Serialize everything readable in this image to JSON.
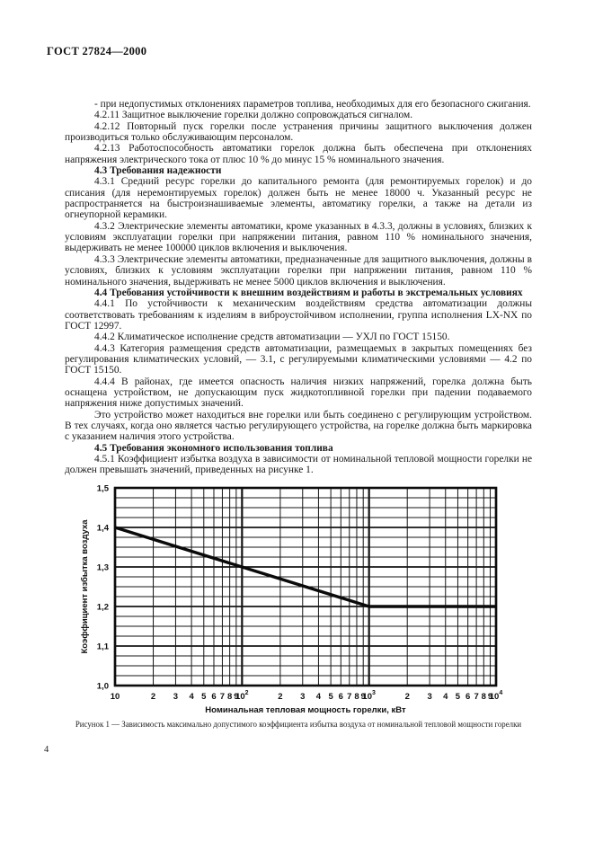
{
  "header": {
    "standard": "ГОСТ 27824—2000"
  },
  "paragraphs": [
    {
      "bold": false,
      "text": "- при недопустимых отклонениях параметров топлива, необходимых для его безопасного сжигания."
    },
    {
      "bold": false,
      "text": "4.2.11 Защитное выключение горелки должно сопровождаться сигналом."
    },
    {
      "bold": false,
      "text": "4.2.12 Повторный пуск горелки после устранения причины защитного выключения должен производиться только обслуживающим персоналом."
    },
    {
      "bold": false,
      "text": "4.2.13 Работоспособность автоматики горелок должна быть обеспечена при отклонениях напряжения электрического тока от плюс 10 % до минус 15 % номинального значения."
    },
    {
      "bold": true,
      "text": "4.3 Требования надежности"
    },
    {
      "bold": false,
      "text": "4.3.1 Средний ресурс горелки до капитального ремонта (для ремонтируемых горелок) и до списания (для неремонтируемых горелок) должен быть не менее 18000 ч. Указанный ресурс не распространяется на быстроизнашиваемые элементы, автоматику горелки, а также на детали из огнеупорной керамики."
    },
    {
      "bold": false,
      "text": "4.3.2 Электрические элементы автоматики, кроме указанных в 4.3.3, должны в условиях, близких к условиям эксплуатации горелки при напряжении питания, равном 110 % номинального значения, выдерживать не менее 100000 циклов включения и выключения."
    },
    {
      "bold": false,
      "text": "4.3.3 Электрические элементы автоматики, предназначенные для защитного выключения, должны в условиях, близких к условиям эксплуатации горелки при напряжении питания, равном 110 % номинального значения, выдерживать не менее 5000 циклов включения и выключения."
    },
    {
      "bold": true,
      "text": "4.4 Требования устойчивости к внешним воздействиям и работы в экстремальных условиях"
    },
    {
      "bold": false,
      "text": "4.4.1 По устойчивости к механическим воздействиям средства автоматизации должны соответствовать требованиям к изделиям в виброустойчивом исполнении, группа исполнения LX-NX по ГОСТ 12997."
    },
    {
      "bold": false,
      "text": "4.4.2 Климатическое исполнение средств автоматизации — УХЛ по ГОСТ 15150."
    },
    {
      "bold": false,
      "text": "4.4.3 Категория размещения средств автоматизации, размещаемых в закрытых помещениях без регулирования климатических условий, — 3.1, с регулируемыми климатическими условиями — 4.2 по ГОСТ 15150."
    },
    {
      "bold": false,
      "text": "4.4.4 В районах, где имеется опасность наличия низких напряжений, горелка должна быть оснащена устройством, не допускающим пуск жидкотопливной горелки при падении подаваемого напряжения ниже допустимых значений."
    },
    {
      "bold": false,
      "text": "Это устройство может находиться вне горелки или быть соединено с регулирующим устройством. В тех случаях, когда оно является частью регулирующего устройства, на горелке должна быть маркировка с указанием наличия этого устройства."
    },
    {
      "bold": true,
      "text": "4.5 Требования экономного использования топлива"
    },
    {
      "bold": false,
      "text": "4.5.1 Коэффициент избытка воздуха в зависимости от номинальной тепловой мощности горелки не должен превышать значений, приведенных на рисунке 1."
    }
  ],
  "figure": {
    "caption": "Рисунок 1 — Зависимость максимально допустимого коэффициента избытка воздуха от номинальной тепловой мощности горелки"
  },
  "chart_data": {
    "type": "line",
    "x_scale": "log",
    "xlim": [
      10,
      10000
    ],
    "ylim": [
      1.0,
      1.5
    ],
    "grid": {
      "y_minor_step": 0.025,
      "y_major_step": 0.1,
      "x_minor": "log-decades",
      "grid_on": true
    },
    "line_points": [
      [
        10,
        1.4
      ],
      [
        1000,
        1.2
      ],
      [
        10000,
        1.2
      ]
    ],
    "xlabel": "Номинальная тепловая мощность горелки, кВт",
    "ylabel": "Коэффициент избытка воздуха",
    "yticks": [
      {
        "label": "1,0",
        "value": 1.0
      },
      {
        "label": "1,1",
        "value": 1.1
      },
      {
        "label": "1,2",
        "value": 1.2
      },
      {
        "label": "1,3",
        "value": 1.3
      },
      {
        "label": "1,4",
        "value": 1.4
      },
      {
        "label": "1,5",
        "value": 1.5
      }
    ],
    "xticks": [
      {
        "label": "10",
        "value": 10
      },
      {
        "label": "2",
        "value": 20
      },
      {
        "label": "3",
        "value": 30
      },
      {
        "label": "4",
        "value": 40
      },
      {
        "label": "5",
        "value": 50
      },
      {
        "label": "6",
        "value": 60
      },
      {
        "label": "7",
        "value": 70
      },
      {
        "label": "8",
        "value": 80
      },
      {
        "label": "9",
        "value": 90
      },
      {
        "label": "10",
        "sup": "2",
        "value": 100
      },
      {
        "label": "2",
        "value": 200
      },
      {
        "label": "3",
        "value": 300
      },
      {
        "label": "4",
        "value": 400
      },
      {
        "label": "5",
        "value": 500
      },
      {
        "label": "6",
        "value": 600
      },
      {
        "label": "7",
        "value": 700
      },
      {
        "label": "8",
        "value": 800
      },
      {
        "label": "9",
        "value": 900
      },
      {
        "label": "10",
        "sup": "3",
        "value": 1000
      },
      {
        "label": "2",
        "value": 2000
      },
      {
        "label": "3",
        "value": 3000
      },
      {
        "label": "4",
        "value": 4000
      },
      {
        "label": "5",
        "value": 5000
      },
      {
        "label": "6",
        "value": 6000
      },
      {
        "label": "7",
        "value": 7000
      },
      {
        "label": "8",
        "value": 8000
      },
      {
        "label": "9",
        "value": 9000
      },
      {
        "label": "10",
        "sup": "4",
        "value": 10000
      }
    ]
  },
  "footer": {
    "page_number": "4"
  }
}
